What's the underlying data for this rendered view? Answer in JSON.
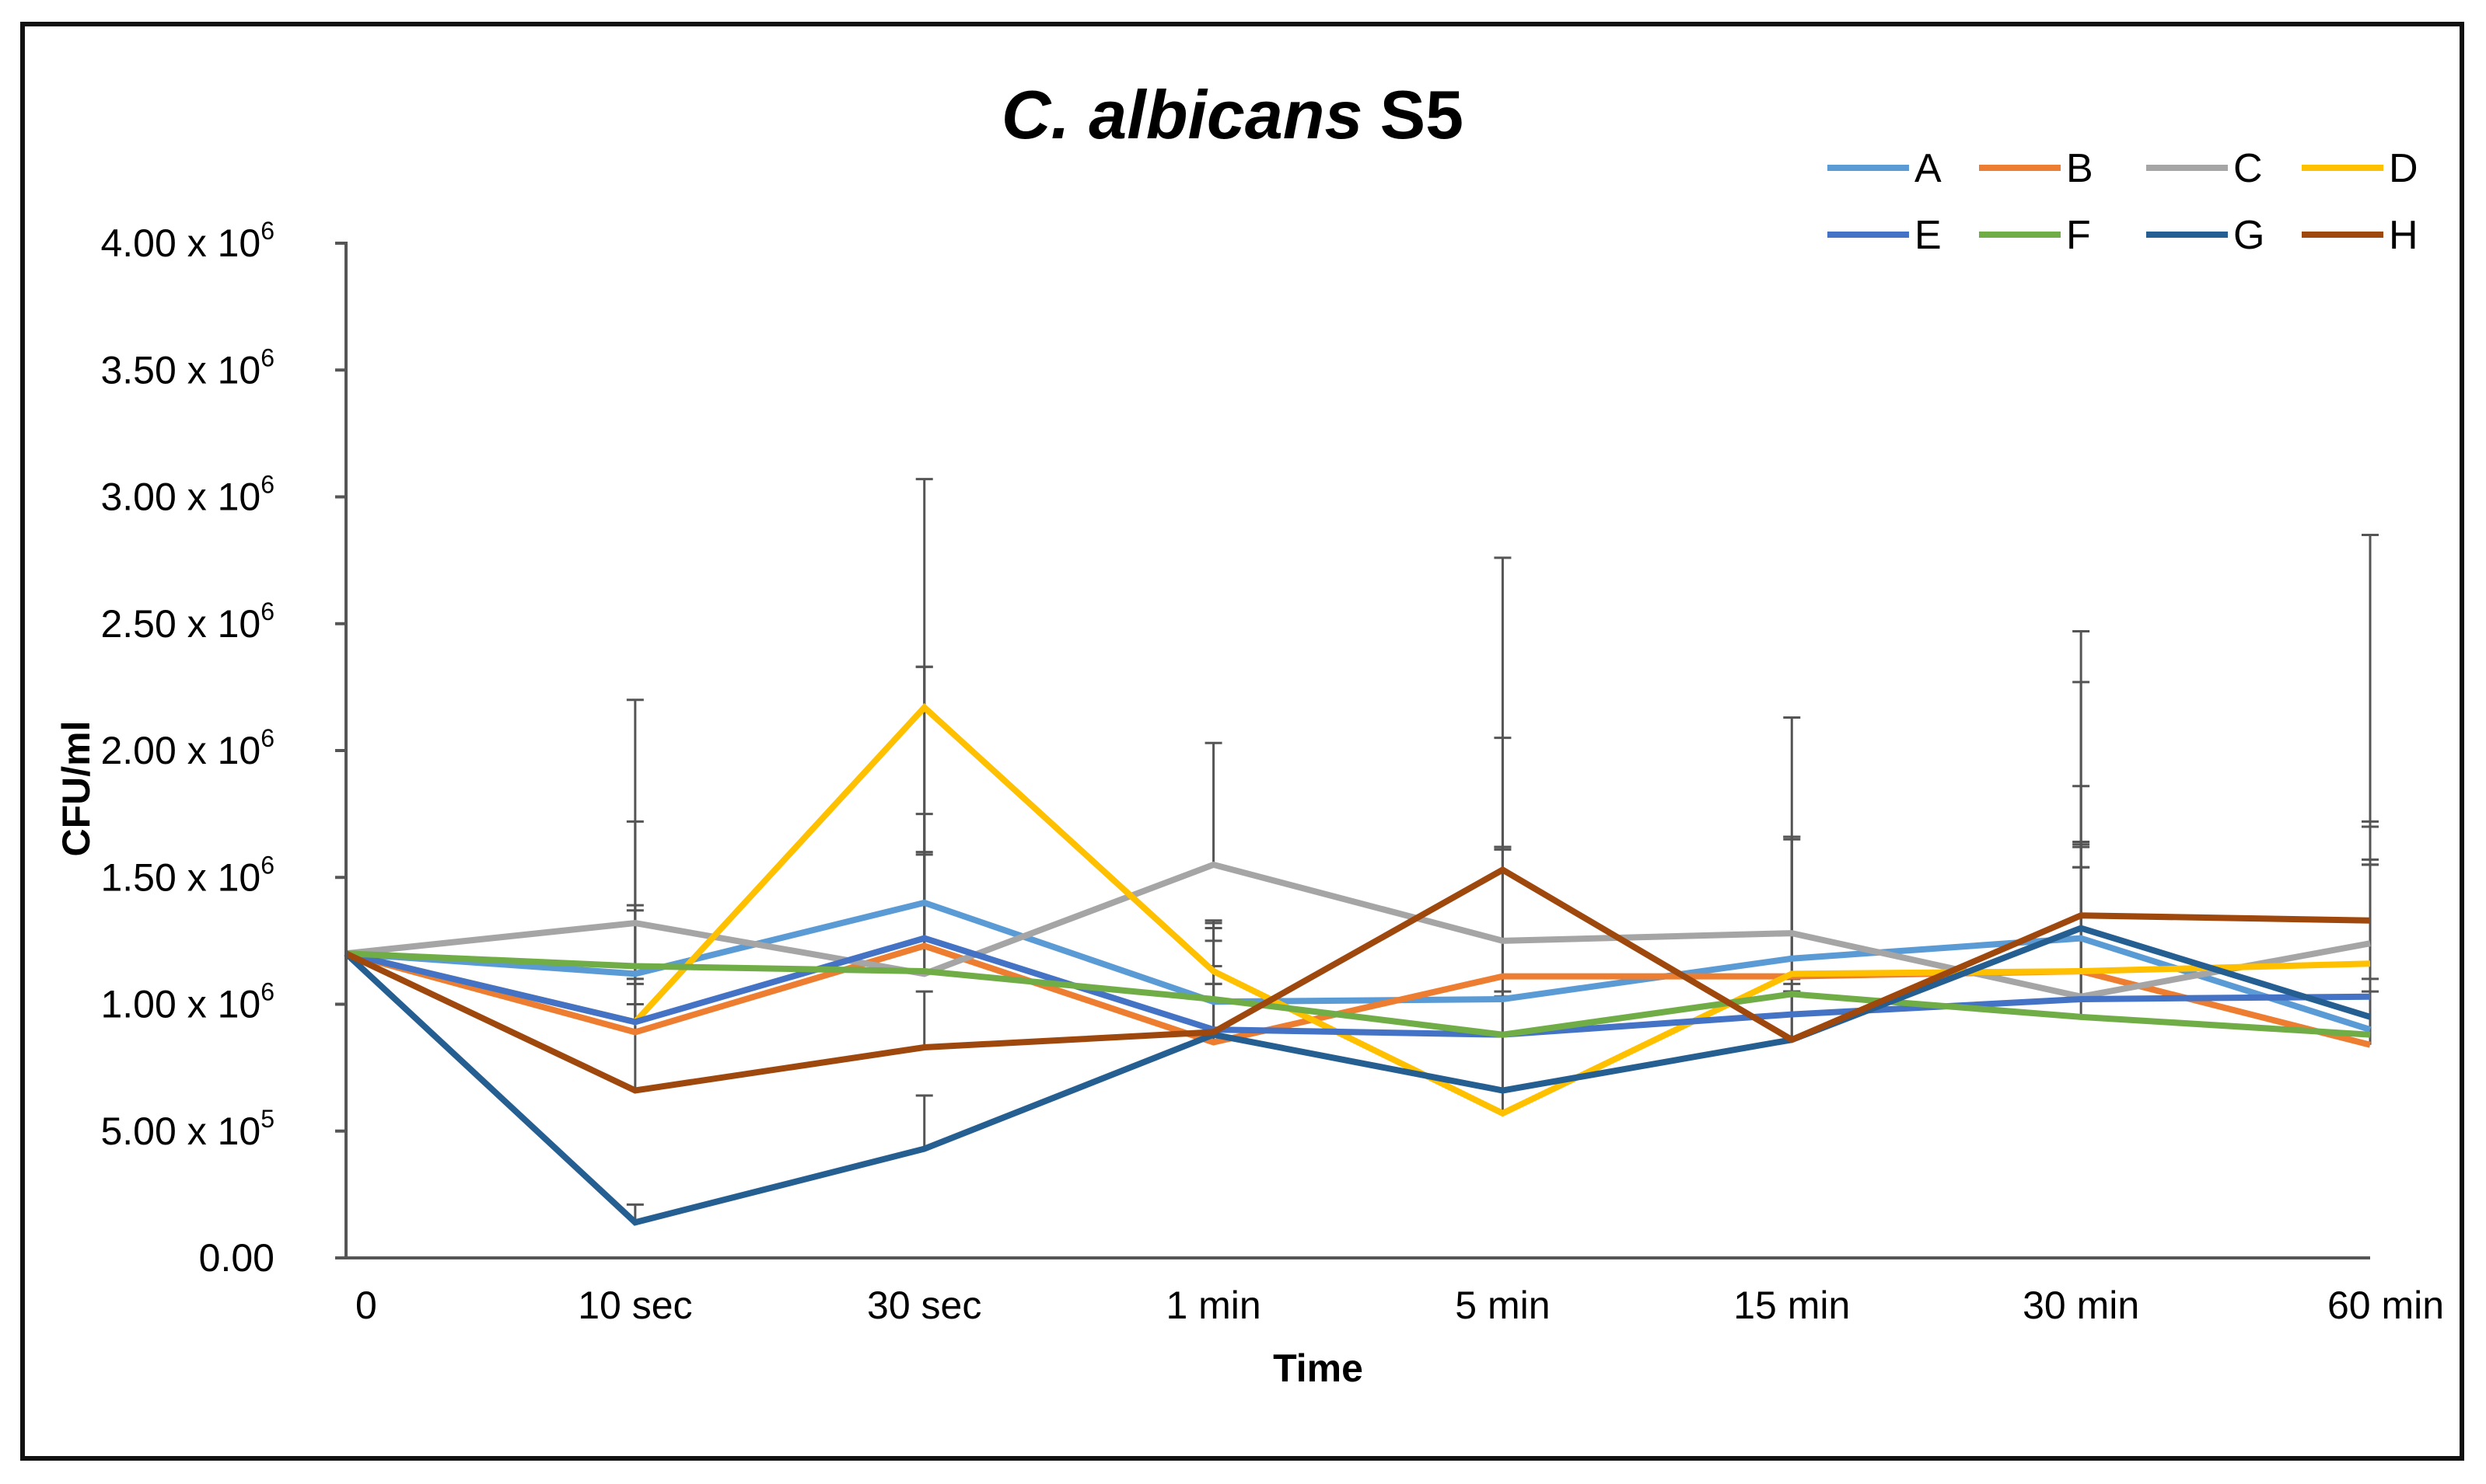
{
  "chart_data": {
    "type": "line",
    "title": {
      "italic": "C. albicans",
      "normal": "S5"
    },
    "xlabel": "Time",
    "ylabel": "CFU/ml",
    "categories": [
      "0",
      "10 sec",
      "30 sec",
      "1 min",
      "5 min",
      "15 min",
      "30 min",
      "60 min"
    ],
    "ylim": [
      0,
      4000000
    ],
    "yticks": [
      {
        "value": 0,
        "mantissa": "0.00",
        "exp": ""
      },
      {
        "value": 500000,
        "mantissa": "5.00 x 10",
        "exp": "5"
      },
      {
        "value": 1000000,
        "mantissa": "1.00 x 10",
        "exp": "6"
      },
      {
        "value": 1500000,
        "mantissa": "1.50 x 10",
        "exp": "6"
      },
      {
        "value": 2000000,
        "mantissa": "2.00 x 10",
        "exp": "6"
      },
      {
        "value": 2500000,
        "mantissa": "2.50 x 10",
        "exp": "6"
      },
      {
        "value": 3000000,
        "mantissa": "3.00 x 10",
        "exp": "6"
      },
      {
        "value": 3500000,
        "mantissa": "3.50 x 10",
        "exp": "6"
      },
      {
        "value": 4000000,
        "mantissa": "4.00 x 10",
        "exp": "6"
      }
    ],
    "legend_position": "top-right",
    "grid": false,
    "error_bar_color": "#555555",
    "series": [
      {
        "name": "A",
        "color": "#5B9BD5",
        "values": [
          1200000,
          1120000,
          1400000,
          1010000,
          1020000,
          1180000,
          1260000,
          900000
        ],
        "error_top": [
          null,
          1720000,
          2330000,
          1300000,
          1620000,
          1660000,
          1860000,
          1700000
        ]
      },
      {
        "name": "B",
        "color": "#ED7D31",
        "values": [
          1200000,
          890000,
          1230000,
          850000,
          1110000,
          1110000,
          1130000,
          840000
        ],
        "error_top": [
          null,
          1370000,
          1590000,
          1150000,
          1610000,
          1650000,
          1630000,
          1570000
        ]
      },
      {
        "name": "C",
        "color": "#A5A5A5",
        "values": [
          1200000,
          1320000,
          1120000,
          1550000,
          1250000,
          1280000,
          1030000,
          1240000
        ],
        "error_top": [
          null,
          2200000,
          3070000,
          2030000,
          2760000,
          2130000,
          2470000,
          2850000
        ]
      },
      {
        "name": "D",
        "color": "#FFC000",
        "values": [
          1200000,
          930000,
          2170000,
          1130000,
          570000,
          1120000,
          1130000,
          1160000
        ],
        "error_top": [
          null,
          1390000,
          2330000,
          1330000,
          2050000,
          1660000,
          2270000,
          1720000
        ]
      },
      {
        "name": "E",
        "color": "#4472C4",
        "values": [
          1200000,
          930000,
          1260000,
          900000,
          880000,
          960000,
          1020000,
          1030000
        ],
        "error_top": [
          null,
          1100000,
          1600000,
          1080000,
          1050000,
          1100000,
          1540000,
          1550000
        ]
      },
      {
        "name": "F",
        "color": "#70AD47",
        "values": [
          1200000,
          1150000,
          1130000,
          1020000,
          880000,
          1040000,
          950000,
          880000
        ],
        "error_top": [
          null,
          1080000,
          1750000,
          1250000,
          1030000,
          1050000,
          1640000,
          1050000
        ]
      },
      {
        "name": "G",
        "color": "#255E91",
        "values": [
          1200000,
          140000,
          430000,
          880000,
          660000,
          860000,
          1300000,
          950000
        ],
        "error_top": [
          null,
          210000,
          640000,
          1080000,
          1030000,
          1050000,
          1540000,
          1100000
        ]
      },
      {
        "name": "H",
        "color": "#9E480E",
        "values": [
          1200000,
          660000,
          830000,
          890000,
          1530000,
          860000,
          1350000,
          1330000
        ],
        "error_top": [
          null,
          1000000,
          1050000,
          1320000,
          1620000,
          1080000,
          1620000,
          1550000
        ]
      }
    ]
  }
}
